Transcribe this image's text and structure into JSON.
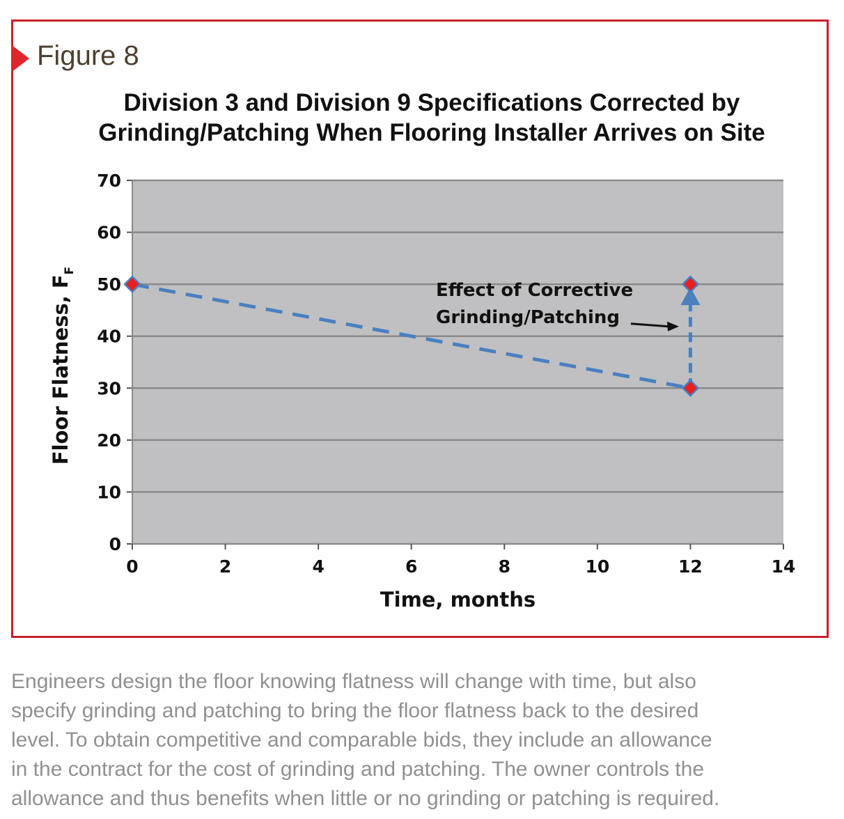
{
  "figure_label": "Figure 8",
  "chart_data": {
    "type": "line",
    "title_lines": [
      "Division 3 and Division 9 Specifications Corrected by",
      "Grinding/Patching When Flooring Installer Arrives on Site"
    ],
    "xlabel": "Time, months",
    "ylabel": "Floor Flatness, F",
    "ylabel_subscript": "F",
    "xlim": [
      0,
      14
    ],
    "ylim": [
      0,
      70
    ],
    "x_ticks": [
      0,
      2,
      4,
      6,
      8,
      10,
      12,
      14
    ],
    "y_ticks": [
      0,
      10,
      20,
      30,
      40,
      50,
      60,
      70
    ],
    "grid": true,
    "series": [
      {
        "points": [
          [
            0,
            50
          ],
          [
            12,
            30
          ]
        ],
        "style": "dashed",
        "marker": "diamond"
      },
      {
        "points": [
          [
            12,
            30
          ],
          [
            12,
            50
          ]
        ],
        "style": "dashed-arrow",
        "marker": "diamond"
      }
    ],
    "annotations": [
      {
        "lines": [
          "Effect of Corrective",
          "Grinding/Patching"
        ],
        "points_to": [
          12,
          42
        ]
      }
    ],
    "colors": {
      "plot_background": "#c0c0c2",
      "gridline": "#8a8a8a",
      "line": "#4a80c0",
      "marker_fill": "#e82020",
      "marker_edge": "#4a80c0",
      "frame_border": "#c8202a"
    }
  },
  "caption_lines": [
    "Engineers design the floor knowing flatness will change with time, but also",
    "specify grinding and patching to bring the floor flatness back to the desired",
    "level. To obtain competitive and comparable bids, they include an allowance",
    "in the contract for the cost of grinding and patching. The owner controls the",
    "allowance and thus benefits when little or no grinding or patching is required."
  ]
}
